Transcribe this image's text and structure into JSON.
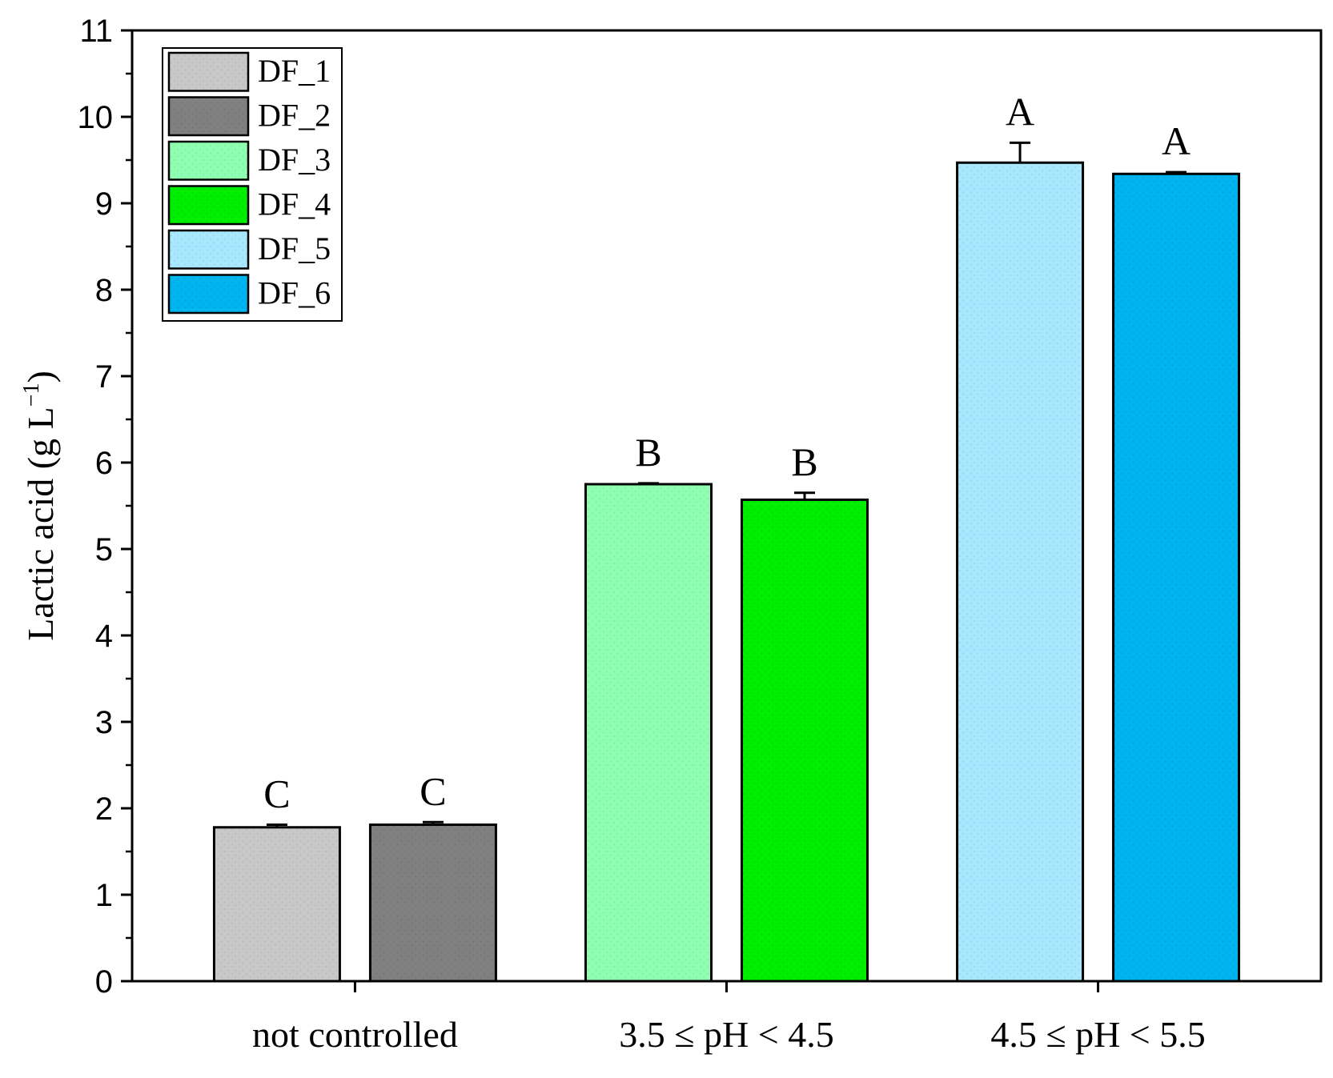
{
  "chart_data": {
    "type": "bar",
    "title": "",
    "xlabel": "",
    "ylabel_main": "Lactic acid (g L",
    "ylabel_sup": "−1",
    "ylabel_close": ")",
    "ylim": [
      0,
      11
    ],
    "yticks": [
      0,
      1,
      2,
      3,
      4,
      5,
      6,
      7,
      8,
      9,
      10,
      11
    ],
    "categories": [
      "not controlled",
      "3.5 ≤ pH < 4.5",
      "4.5 ≤ pH < 5.5"
    ],
    "legend_position": "top-left",
    "series": [
      {
        "name": "DF_1",
        "group": 0,
        "value": 1.78,
        "error": 0.03,
        "letter": "C",
        "color": "#c8c8c8"
      },
      {
        "name": "DF_2",
        "group": 0,
        "value": 1.81,
        "error": 0.03,
        "letter": "C",
        "color": "#808080"
      },
      {
        "name": "DF_3",
        "group": 1,
        "value": 5.75,
        "error": 0.01,
        "letter": "B",
        "color": "#8effb0"
      },
      {
        "name": "DF_4",
        "group": 1,
        "value": 5.57,
        "error": 0.08,
        "letter": "B",
        "color": "#00ee00"
      },
      {
        "name": "DF_5",
        "group": 2,
        "value": 9.47,
        "error": 0.23,
        "letter": "A",
        "color": "#a8e8ff"
      },
      {
        "name": "DF_6",
        "group": 2,
        "value": 9.34,
        "error": 0.02,
        "letter": "A",
        "color": "#00b4f0"
      }
    ]
  }
}
